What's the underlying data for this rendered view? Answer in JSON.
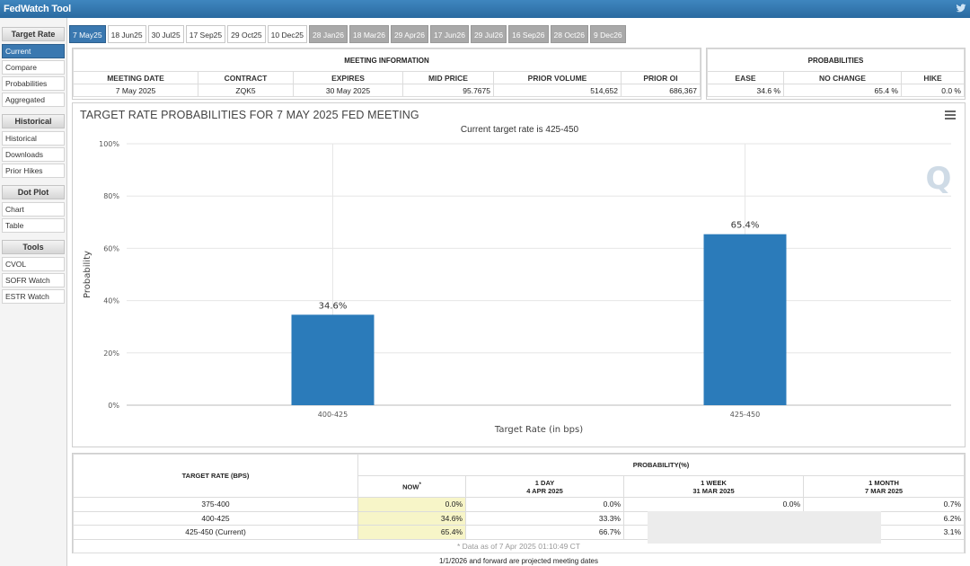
{
  "app": {
    "title": "FedWatch Tool"
  },
  "sidebar": {
    "groups": [
      {
        "heading": "Target Rate",
        "items": [
          "Current",
          "Compare",
          "Probabilities",
          "Aggregated"
        ]
      },
      {
        "heading": "Historical",
        "items": [
          "Historical",
          "Downloads",
          "Prior Hikes"
        ]
      },
      {
        "heading": "Dot Plot",
        "items": [
          "Chart",
          "Table"
        ]
      },
      {
        "heading": "Tools",
        "items": [
          "CVOL",
          "SOFR Watch",
          "ESTR Watch"
        ]
      }
    ],
    "active_item": "Current"
  },
  "tabs": [
    {
      "label": "7 May25",
      "state": "selected"
    },
    {
      "label": "18 Jun25",
      "state": "plain"
    },
    {
      "label": "30 Jul25",
      "state": "plain"
    },
    {
      "label": "17 Sep25",
      "state": "plain"
    },
    {
      "label": "29 Oct25",
      "state": "plain"
    },
    {
      "label": "10 Dec25",
      "state": "plain"
    },
    {
      "label": "28 Jan26",
      "state": "future"
    },
    {
      "label": "18 Mar26",
      "state": "future"
    },
    {
      "label": "29 Apr26",
      "state": "future"
    },
    {
      "label": "17 Jun26",
      "state": "future"
    },
    {
      "label": "29 Jul26",
      "state": "future"
    },
    {
      "label": "16 Sep26",
      "state": "future"
    },
    {
      "label": "28 Oct26",
      "state": "future"
    },
    {
      "label": "9 Dec26",
      "state": "future"
    }
  ],
  "meeting_info": {
    "heading": "MEETING INFORMATION",
    "columns": [
      "MEETING DATE",
      "CONTRACT",
      "EXPIRES",
      "MID PRICE",
      "PRIOR VOLUME",
      "PRIOR OI"
    ],
    "row": [
      "7 May 2025",
      "ZQK5",
      "30 May 2025",
      "95.7675",
      "514,652",
      "686,367"
    ]
  },
  "probabilities": {
    "heading": "PROBABILITIES",
    "columns": [
      "EASE",
      "NO CHANGE",
      "HIKE"
    ],
    "row": [
      "34.6 %",
      "65.4 %",
      "0.0 %"
    ]
  },
  "chart": {
    "title": "TARGET RATE PROBABILITIES FOR 7 MAY 2025 FED MEETING",
    "subtitle": "Current target rate is 425-450",
    "watermark": "Q"
  },
  "chart_data": {
    "type": "bar",
    "title": "TARGET RATE PROBABILITIES FOR 7 MAY 2025 FED MEETING",
    "subtitle": "Current target rate is 425-450",
    "categories": [
      "400-425",
      "425-450"
    ],
    "values": [
      34.6,
      65.4
    ],
    "data_labels": [
      "34.6%",
      "65.4%"
    ],
    "xlabel": "Target Rate (in bps)",
    "ylabel": "Probability",
    "ylim": [
      0,
      100
    ],
    "yticks": [
      "0%",
      "20%",
      "40%",
      "60%",
      "80%",
      "100%"
    ],
    "bar_color": "#2b7bba",
    "grid": true
  },
  "prob_table": {
    "row_header": "TARGET RATE (BPS)",
    "group_header": "PROBABILITY(%)",
    "columns": [
      {
        "line1": "NOW",
        "line2": "",
        "marker": "*"
      },
      {
        "line1": "1 DAY",
        "line2": "4 APR 2025"
      },
      {
        "line1": "1 WEEK",
        "line2": "31 MAR 2025"
      },
      {
        "line1": "1 MONTH",
        "line2": "7 MAR 2025"
      }
    ],
    "rows": [
      {
        "rate": "375-400",
        "now": "0.0%",
        "day": "0.0%",
        "week": "0.0%",
        "month": "0.7%"
      },
      {
        "rate": "400-425",
        "now": "34.6%",
        "day": "33.3%",
        "week": "",
        "month": "6.2%"
      },
      {
        "rate": "425-450 (Current)",
        "now": "65.4%",
        "day": "66.7%",
        "week": "",
        "month": "3.1%"
      }
    ],
    "footnote": "* Data as of 7 Apr 2025 01:10:49 CT"
  },
  "bottom_note": "1/1/2026 and forward are projected meeting dates",
  "colors": {
    "accent": "#3a78b0",
    "bar": "#2b7bba",
    "now_highlight": "#f7f5c8"
  }
}
